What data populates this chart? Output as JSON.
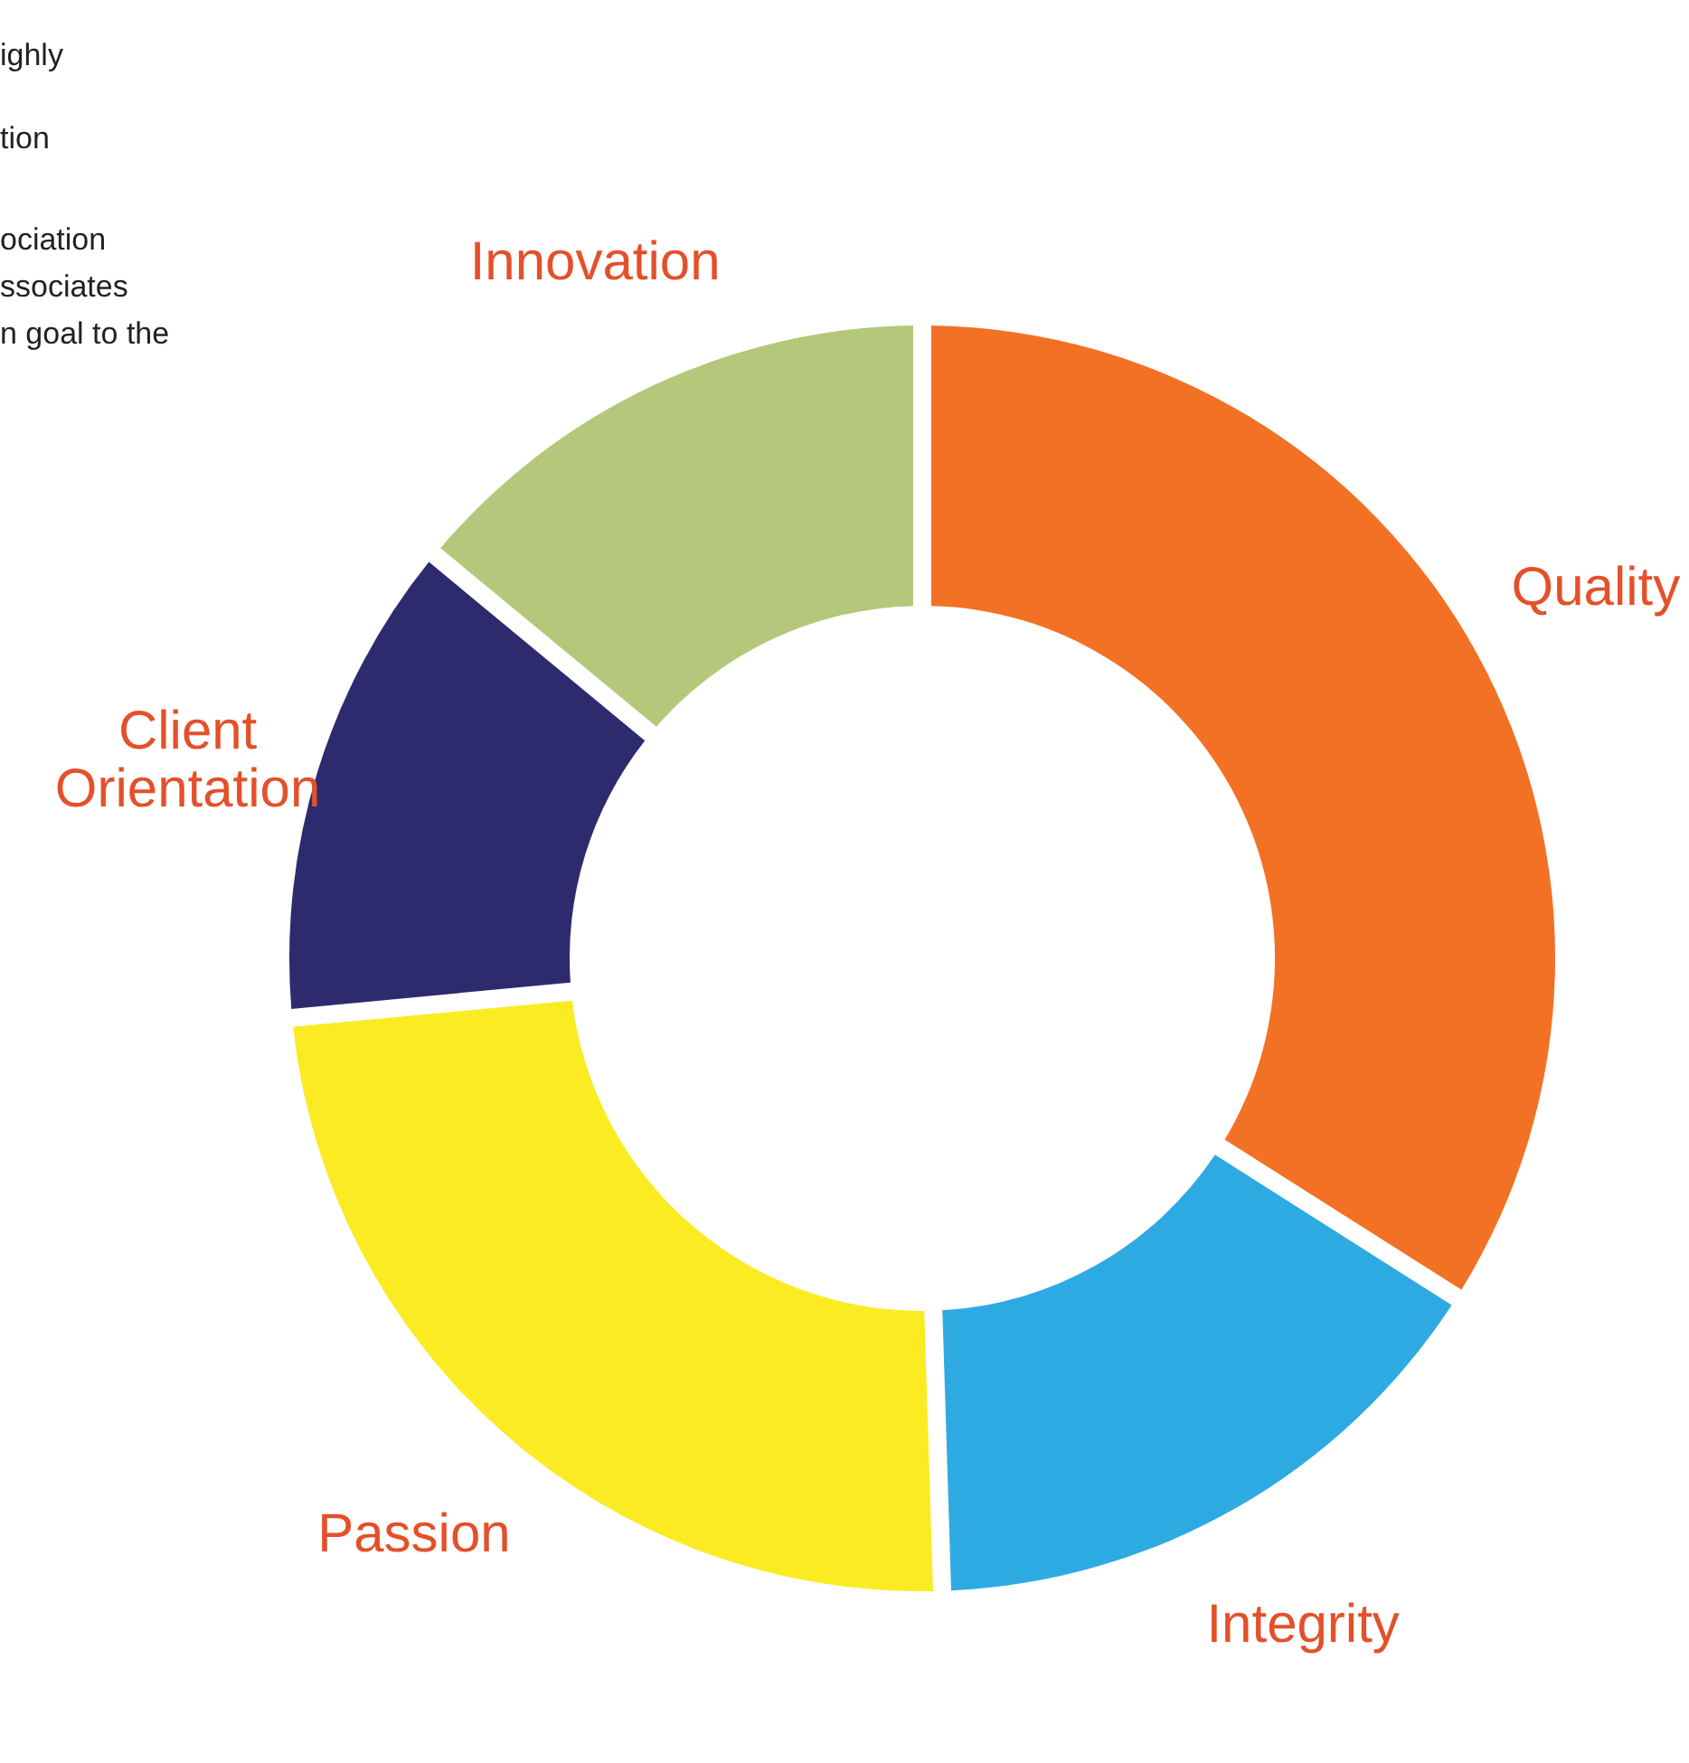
{
  "chart_data": {
    "type": "donut",
    "categories": [
      "Quality",
      "Integrity",
      "Passion",
      "Client Orientation",
      "Innovation"
    ],
    "values": [
      34,
      15.5,
      24,
      12.5,
      14
    ],
    "colors": [
      "#f37124",
      "#2eaae2",
      "#fbeb22",
      "#2e2a6e",
      "#b5c77a"
    ],
    "annotations": [
      "ighly",
      "tion",
      "ociation",
      "ssociates",
      "n goal to the"
    ]
  }
}
